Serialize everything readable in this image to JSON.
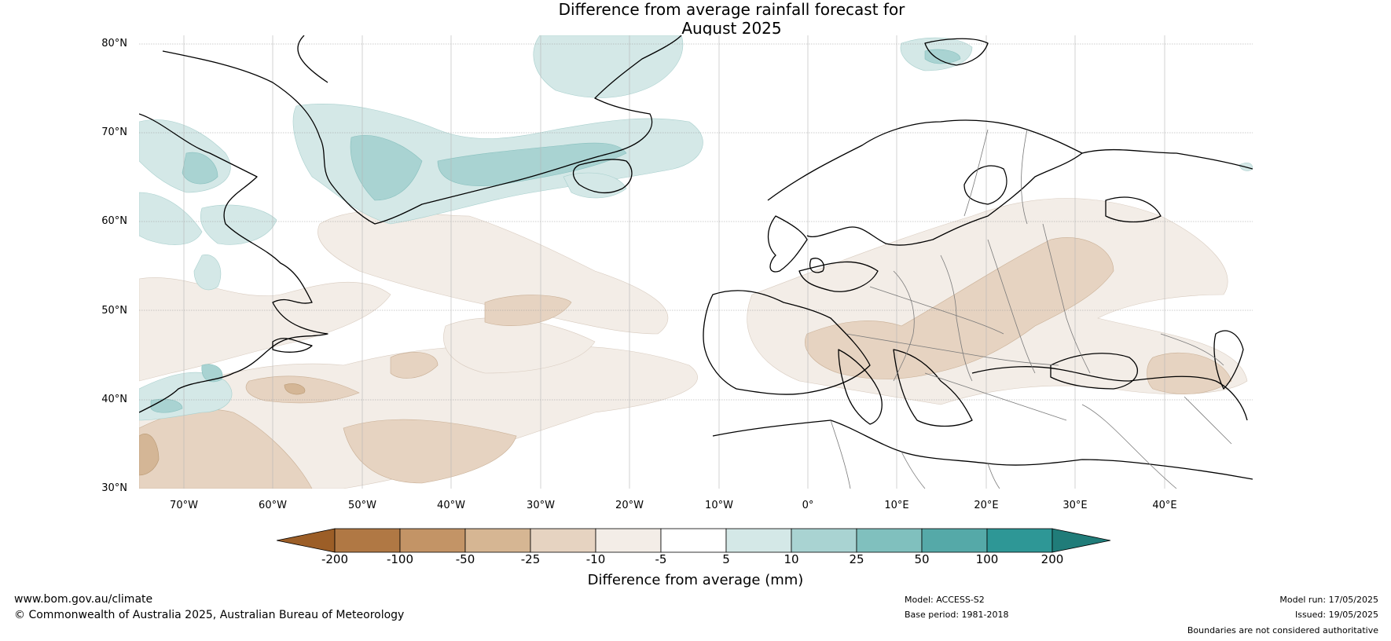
{
  "title": {
    "line1": "Difference from average rainfall forecast for",
    "line2": "August 2025"
  },
  "map": {
    "lat_labels": [
      "80°N",
      "70°N",
      "60°N",
      "50°N",
      "40°N",
      "30°N"
    ],
    "lon_labels": [
      "70°W",
      "60°W",
      "50°W",
      "40°W",
      "30°W",
      "20°W",
      "10°W",
      "0°",
      "10°E",
      "20°E",
      "30°E",
      "40°E"
    ],
    "colors": {
      "dry_10_5": "#f3ede7",
      "dry_25_10": "#e6d3c1",
      "dry_50_25": "#d4b696",
      "wet_5_10": "#d4e8e7",
      "wet_10_25": "#a9d3d2",
      "coast": "#000000",
      "border": "#7a7a7a",
      "grid": "#9a9a9a"
    }
  },
  "colorbar": {
    "label": "Difference from average (mm)",
    "ticks": [
      "-200",
      "-100",
      "-50",
      "-25",
      "-10",
      "-5",
      "5",
      "10",
      "25",
      "50",
      "100",
      "200"
    ],
    "colors": [
      "#9c5e27",
      "#b07844",
      "#c39466",
      "#d6b693",
      "#e6d3c1",
      "#f3ede7",
      "#ffffff",
      "#d4e8e7",
      "#a9d3d2",
      "#80c0be",
      "#55a9a8",
      "#2e9796",
      "#207c79"
    ]
  },
  "footer": {
    "website": "www.bom.gov.au/climate",
    "copyright": "© Commonwealth of Australia 2025, Australian Bureau of Meteorology",
    "model": "Model: ACCESS-S2",
    "base_period": "Base period: 1981-2018",
    "model_run": "Model run: 17/05/2025",
    "issued": "Issued: 19/05/2025",
    "disclaimer": "Boundaries are not considered authoritative"
  }
}
